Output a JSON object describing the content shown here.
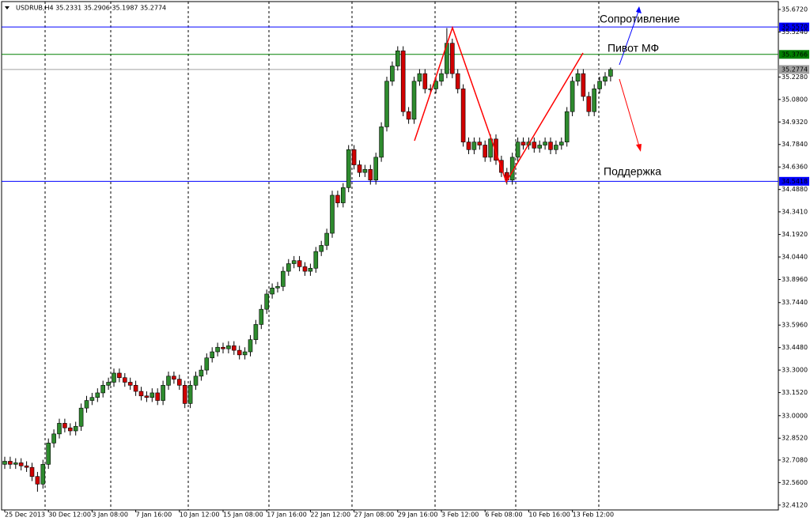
{
  "chart_data": {
    "type": "candlestick",
    "title": "USDRUB,H4  35.2331 35.2906 35.1987 35.2774",
    "categories": [
      "25 Dec 2013",
      null,
      null,
      null,
      null,
      null,
      null,
      null,
      "30 Dec 12:00",
      null,
      null,
      null,
      null,
      null,
      null,
      null,
      "3 Jan 08:00",
      null,
      null,
      null,
      null,
      null,
      null,
      null,
      "7 Jan 16:00",
      null,
      null,
      null,
      null,
      null,
      null,
      null,
      "10 Jan 12:00",
      null,
      null,
      null,
      null,
      null,
      null,
      null,
      "15 Jan 08:00",
      null,
      null,
      null,
      null,
      null,
      null,
      null,
      "17 Jan 16:00",
      null,
      null,
      null,
      null,
      null,
      null,
      null,
      "22 Jan 12:00",
      null,
      null,
      null,
      null,
      null,
      null,
      null,
      "27 Jan 08:00",
      null,
      null,
      null,
      null,
      null,
      null,
      null,
      "29 Jan 16:00",
      null,
      null,
      null,
      null,
      null,
      null,
      null,
      "3 Feb 12:00",
      null,
      null,
      null,
      null,
      null,
      null,
      null,
      "6 Feb 08:00",
      null,
      null,
      null,
      null,
      null,
      null,
      null,
      "10 Feb 16:00",
      null,
      null,
      null,
      null,
      null,
      null,
      null,
      "13 Feb 12:00",
      null,
      null,
      null,
      null,
      null,
      null,
      null
    ],
    "open": [
      32.68,
      32.7,
      32.68,
      32.69,
      32.67,
      32.66,
      32.6,
      32.55,
      32.68,
      32.82,
      32.88,
      32.95,
      32.92,
      32.9,
      32.93,
      33.05,
      33.1,
      33.12,
      33.15,
      33.2,
      33.22,
      33.28,
      33.25,
      33.22,
      33.2,
      33.16,
      33.13,
      33.12,
      33.15,
      33.1,
      33.2,
      33.26,
      33.24,
      33.2,
      33.08,
      33.2,
      33.26,
      33.3,
      33.38,
      33.42,
      33.45,
      33.44,
      33.46,
      33.43,
      33.4,
      33.42,
      33.5,
      33.6,
      33.7,
      33.8,
      33.84,
      33.85,
      33.95,
      34.0,
      34.02,
      33.98,
      33.95,
      33.97,
      34.08,
      34.12,
      34.2,
      34.45,
      34.4,
      34.5,
      34.75,
      34.65,
      34.6,
      34.62,
      34.55,
      34.7,
      34.9,
      35.2,
      35.3,
      35.4,
      35.0,
      34.95,
      35.2,
      35.25,
      35.15,
      35.15,
      35.2,
      35.25,
      35.45,
      35.25,
      35.15,
      34.8,
      34.75,
      34.8,
      34.78,
      34.7,
      34.82,
      34.68,
      34.6,
      34.55,
      34.7,
      34.8,
      34.78,
      34.8,
      34.76,
      34.78,
      34.8,
      34.75,
      34.78,
      34.8,
      35.0,
      35.2,
      35.25,
      35.1,
      35.0,
      35.15,
      35.2,
      35.2331
    ],
    "high": [
      32.73,
      32.73,
      32.72,
      32.72,
      32.7,
      32.69,
      32.63,
      32.71,
      32.85,
      32.91,
      32.98,
      32.98,
      32.95,
      32.96,
      33.08,
      33.13,
      33.15,
      33.18,
      33.23,
      33.25,
      33.31,
      33.31,
      33.28,
      33.25,
      33.23,
      33.19,
      33.16,
      33.18,
      33.18,
      33.23,
      33.29,
      33.29,
      33.27,
      33.23,
      33.23,
      33.29,
      33.33,
      33.41,
      33.45,
      33.48,
      33.48,
      33.49,
      33.49,
      33.46,
      33.45,
      33.53,
      33.63,
      33.73,
      33.83,
      33.87,
      33.88,
      33.98,
      34.03,
      34.05,
      34.05,
      34.01,
      34.0,
      34.11,
      34.15,
      34.23,
      34.48,
      34.48,
      34.53,
      34.78,
      34.78,
      34.68,
      34.65,
      34.65,
      34.73,
      34.93,
      35.23,
      35.33,
      35.43,
      35.43,
      35.03,
      35.23,
      35.28,
      35.28,
      35.18,
      35.23,
      35.28,
      35.55,
      35.48,
      35.28,
      35.18,
      34.83,
      34.83,
      34.83,
      34.81,
      34.85,
      34.85,
      34.71,
      34.63,
      34.73,
      34.83,
      34.83,
      34.83,
      34.83,
      34.81,
      34.83,
      34.83,
      34.81,
      34.83,
      35.03,
      35.23,
      35.28,
      35.28,
      35.13,
      35.18,
      35.23,
      35.26,
      35.2906
    ],
    "low": [
      32.65,
      32.65,
      32.65,
      32.64,
      32.63,
      32.57,
      32.5,
      32.52,
      32.65,
      32.79,
      32.85,
      32.89,
      32.87,
      32.87,
      32.9,
      33.02,
      33.07,
      33.09,
      33.12,
      33.17,
      33.19,
      33.22,
      33.19,
      33.17,
      33.13,
      33.1,
      33.09,
      33.09,
      33.07,
      33.07,
      33.17,
      33.21,
      33.17,
      33.05,
      33.05,
      33.17,
      33.23,
      33.27,
      33.35,
      33.39,
      33.41,
      33.41,
      33.4,
      33.37,
      33.37,
      33.39,
      33.47,
      33.57,
      33.67,
      33.77,
      33.81,
      33.82,
      33.92,
      33.97,
      33.95,
      33.92,
      33.92,
      33.94,
      34.05,
      34.09,
      34.17,
      34.37,
      34.37,
      34.47,
      34.62,
      34.57,
      34.57,
      34.52,
      34.52,
      34.67,
      34.87,
      35.17,
      35.27,
      34.97,
      34.92,
      34.92,
      35.17,
      35.12,
      35.12,
      35.12,
      35.17,
      35.22,
      35.22,
      35.12,
      34.77,
      34.72,
      34.72,
      34.75,
      34.67,
      34.67,
      34.65,
      34.57,
      34.52,
      34.52,
      34.67,
      34.75,
      34.75,
      34.73,
      34.73,
      34.75,
      34.72,
      34.72,
      34.75,
      34.77,
      34.97,
      35.17,
      35.07,
      34.97,
      34.97,
      35.12,
      35.17,
      35.1987
    ],
    "close": [
      32.7,
      32.68,
      32.69,
      32.67,
      32.66,
      32.6,
      32.55,
      32.68,
      32.82,
      32.88,
      32.95,
      32.92,
      32.9,
      32.93,
      33.05,
      33.1,
      33.12,
      33.15,
      33.2,
      33.22,
      33.28,
      33.25,
      33.22,
      33.2,
      33.16,
      33.13,
      33.12,
      33.15,
      33.1,
      33.2,
      33.26,
      33.24,
      33.2,
      33.08,
      33.2,
      33.26,
      33.3,
      33.38,
      33.42,
      33.45,
      33.44,
      33.46,
      33.43,
      33.4,
      33.42,
      33.5,
      33.6,
      33.7,
      33.8,
      33.84,
      33.85,
      33.95,
      34.0,
      34.02,
      33.98,
      33.95,
      33.97,
      34.08,
      34.12,
      34.2,
      34.45,
      34.4,
      34.5,
      34.75,
      34.65,
      34.6,
      34.62,
      34.55,
      34.7,
      34.9,
      35.2,
      35.3,
      35.4,
      35.0,
      34.95,
      35.2,
      35.25,
      35.15,
      35.15,
      35.2,
      35.25,
      35.45,
      35.25,
      35.15,
      34.8,
      34.75,
      34.8,
      34.78,
      34.7,
      34.82,
      34.68,
      34.6,
      34.55,
      34.7,
      34.8,
      34.78,
      34.8,
      34.76,
      34.78,
      34.8,
      34.75,
      34.78,
      34.8,
      35.0,
      35.2,
      35.25,
      35.1,
      35.0,
      35.15,
      35.2,
      35.23,
      35.2774
    ],
    "up_color": "#2e8b2e",
    "down_color": "#d00000",
    "ylim": [
      32.38,
      35.724
    ],
    "yticks": [
      {
        "value": 35.672,
        "label": "35.6720"
      },
      {
        "value": 35.524,
        "label": "35.5240"
      },
      {
        "value": 35.228,
        "label": "35.2280"
      },
      {
        "value": 35.08,
        "label": "35.0800"
      },
      {
        "value": 34.932,
        "label": "34.9320"
      },
      {
        "value": 34.784,
        "label": "34.7840"
      },
      {
        "value": 34.636,
        "label": "34.6360"
      },
      {
        "value": 34.488,
        "label": "34.4880"
      },
      {
        "value": 34.341,
        "label": "34.3410"
      },
      {
        "value": 34.192,
        "label": "34.1920"
      },
      {
        "value": 34.044,
        "label": "34.0440"
      },
      {
        "value": 33.896,
        "label": "33.8960"
      },
      {
        "value": 33.744,
        "label": "33.7440"
      },
      {
        "value": 33.596,
        "label": "33.5960"
      },
      {
        "value": 33.448,
        "label": "33.4480"
      },
      {
        "value": 33.3,
        "label": "33.3000"
      },
      {
        "value": 33.152,
        "label": "33.1520"
      },
      {
        "value": 33.0,
        "label": "33.0000"
      },
      {
        "value": 32.852,
        "label": "32.8520"
      },
      {
        "value": 32.708,
        "label": "32.7080"
      },
      {
        "value": 32.56,
        "label": "32.5600"
      },
      {
        "value": 32.412,
        "label": "32.4120"
      }
    ],
    "levels": [
      {
        "value": 35.557,
        "label": "35.5570",
        "color": "#0000ff"
      },
      {
        "value": 35.3766,
        "label": "35.3766",
        "color": "#008000"
      },
      {
        "value": 35.2774,
        "label": "35.2774",
        "color": "#a0a0a0"
      },
      {
        "value": 34.5418,
        "label": "34.5418",
        "color": "#0000ff"
      }
    ],
    "annotations": [
      "Сопротивление",
      "Пивот МФ",
      "Поддержка"
    ]
  }
}
